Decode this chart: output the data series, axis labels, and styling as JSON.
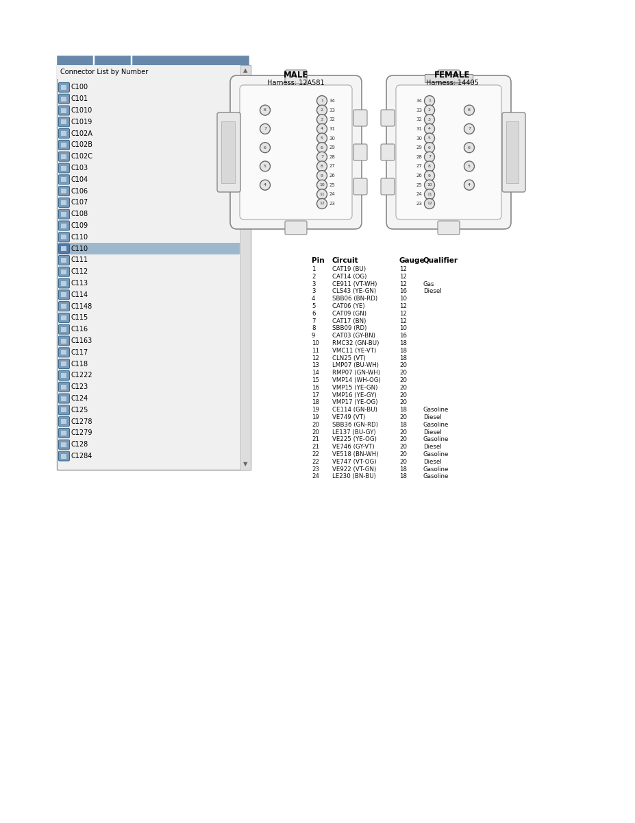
{
  "bg_color": "#ffffff",
  "panel_bg": "#ffffff",
  "connector_list_title": "Connector List by Number",
  "connectors": [
    "C100",
    "C101",
    "C1010",
    "C1019",
    "C102A",
    "C102B",
    "C102C",
    "C103",
    "C104",
    "C106",
    "C107",
    "C108",
    "C109",
    "C110",
    "C110",
    "C111",
    "C112",
    "C113",
    "C114",
    "C1148",
    "C115",
    "C116",
    "C1163",
    "C117",
    "C118",
    "C1222",
    "C123",
    "C124",
    "C125",
    "C1278",
    "C1279",
    "C128",
    "C1284"
  ],
  "highlighted_index": 14,
  "male_label": "MALE",
  "male_harness": "Harness: 12A581",
  "female_label": "FEMALE",
  "female_harness": "Harness: 14405",
  "table_headers": [
    "Pin",
    "Circuit",
    "Gauge",
    "Qualifier"
  ],
  "table_rows": [
    [
      "1",
      "CAT19 (BU)",
      "12",
      ""
    ],
    [
      "2",
      "CAT14 (OG)",
      "12",
      ""
    ],
    [
      "3",
      "CE911 (VT-WH)",
      "12",
      "Gas"
    ],
    [
      "3",
      "CLS43 (YE-GN)",
      "16",
      "Diesel"
    ],
    [
      "4",
      "SBB06 (BN-RD)",
      "10",
      ""
    ],
    [
      "5",
      "CAT06 (YE)",
      "12",
      ""
    ],
    [
      "6",
      "CAT09 (GN)",
      "12",
      ""
    ],
    [
      "7",
      "CAT17 (BN)",
      "12",
      ""
    ],
    [
      "8",
      "SBB09 (RD)",
      "10",
      ""
    ],
    [
      "9",
      "CAT03 (GY-BN)",
      "16",
      ""
    ],
    [
      "10",
      "RMC32 (GN-BU)",
      "18",
      ""
    ],
    [
      "11",
      "VMC11 (YE-VT)",
      "18",
      ""
    ],
    [
      "12",
      "CLN25 (VT)",
      "18",
      ""
    ],
    [
      "13",
      "LMP07 (BU-WH)",
      "20",
      ""
    ],
    [
      "14",
      "RMP07 (GN-WH)",
      "20",
      ""
    ],
    [
      "15",
      "VMP14 (WH-OG)",
      "20",
      ""
    ],
    [
      "16",
      "VMP15 (YE-GN)",
      "20",
      ""
    ],
    [
      "17",
      "VMP16 (YE-GY)",
      "20",
      ""
    ],
    [
      "18",
      "VMP17 (YE-OG)",
      "20",
      ""
    ],
    [
      "19",
      "CE114 (GN-BU)",
      "18",
      "Gasoline"
    ],
    [
      "19",
      "VE749 (VT)",
      "20",
      "Diesel"
    ],
    [
      "20",
      "SBB36 (GN-RD)",
      "18",
      "Gasoline"
    ],
    [
      "20",
      "LE137 (BU-GY)",
      "20",
      "Diesel"
    ],
    [
      "21",
      "VE225 (YE-OG)",
      "20",
      "Gasoline"
    ],
    [
      "21",
      "VE746 (GY-VT)",
      "20",
      "Diesel"
    ],
    [
      "22",
      "VE518 (BN-WH)",
      "20",
      "Gasoline"
    ],
    [
      "22",
      "VE747 (VT-OG)",
      "20",
      "Diesel"
    ],
    [
      "23",
      "VE922 (VT-GN)",
      "18",
      "Gasoline"
    ],
    [
      "24",
      "LE230 (BN-BU)",
      "18",
      "Gasoline"
    ]
  ]
}
